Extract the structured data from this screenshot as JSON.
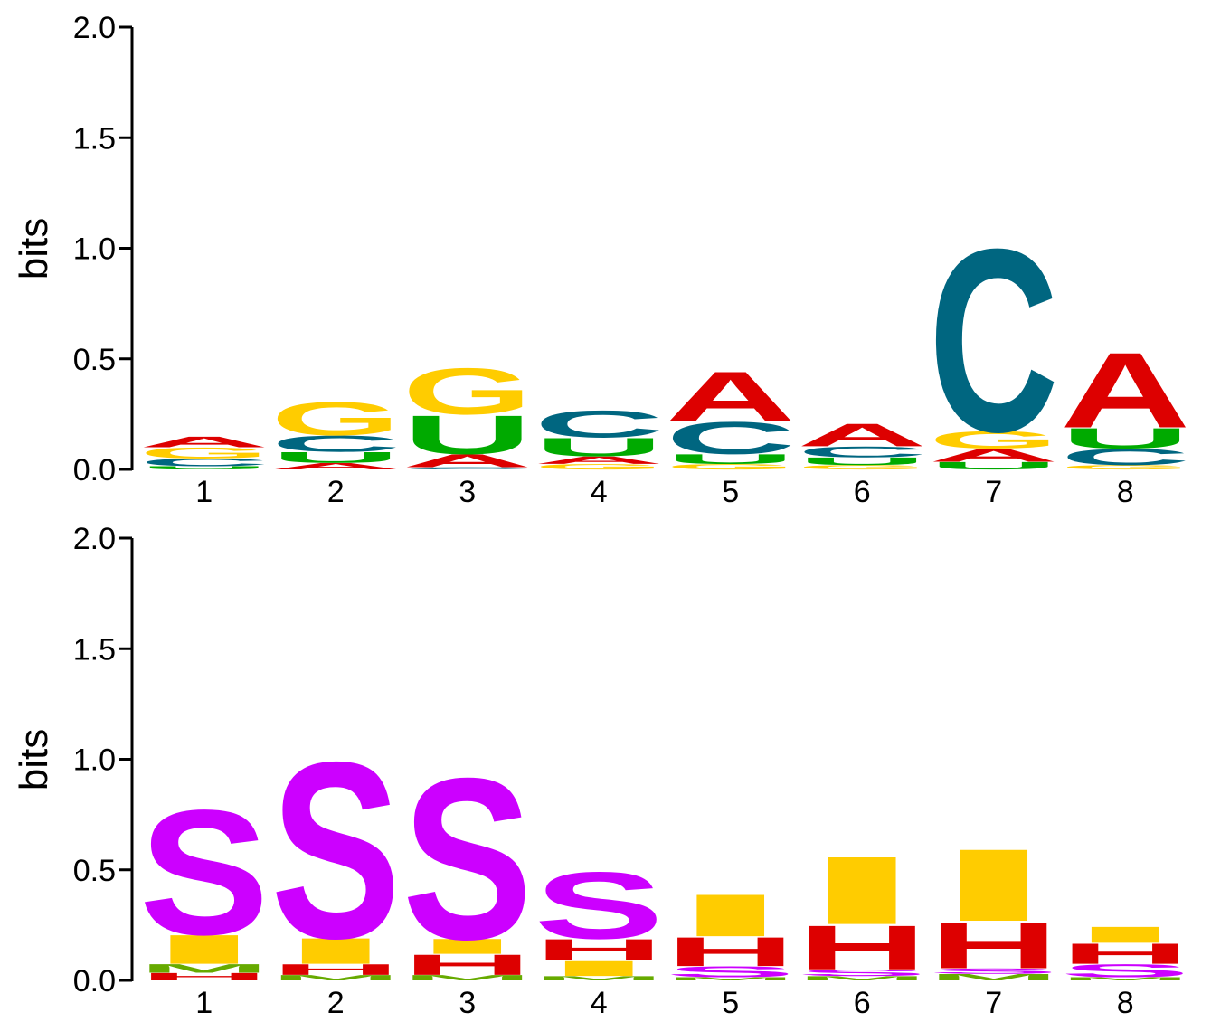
{
  "chart_data": [
    {
      "type": "sequence-logo",
      "alphabet": "RNA",
      "ylabel": "bits",
      "ylim": [
        0,
        2.0
      ],
      "yticks": [
        "0.0",
        "0.5",
        "1.0",
        "1.5",
        "2.0"
      ],
      "positions": [
        "1",
        "2",
        "3",
        "4",
        "5",
        "6",
        "7",
        "8"
      ],
      "colors": {
        "A": "#dd0000",
        "C": "#006680",
        "G": "#ffcc00",
        "U": "#00aa00"
      },
      "columns": [
        [
          {
            "letter": "U",
            "bits": 0.015
          },
          {
            "letter": "C",
            "bits": 0.035
          },
          {
            "letter": "G",
            "bits": 0.05
          },
          {
            "letter": "A",
            "bits": 0.05
          }
        ],
        [
          {
            "letter": "A",
            "bits": 0.03
          },
          {
            "letter": "U",
            "bits": 0.05
          },
          {
            "letter": "C",
            "bits": 0.075
          },
          {
            "letter": "G",
            "bits": 0.155
          }
        ],
        [
          {
            "letter": "C",
            "bits": 0.01
          },
          {
            "letter": "A",
            "bits": 0.06
          },
          {
            "letter": "U",
            "bits": 0.18
          },
          {
            "letter": "G",
            "bits": 0.215
          }
        ],
        [
          {
            "letter": "G",
            "bits": 0.025
          },
          {
            "letter": "A",
            "bits": 0.035
          },
          {
            "letter": "U",
            "bits": 0.085
          },
          {
            "letter": "C",
            "bits": 0.125
          }
        ],
        [
          {
            "letter": "G",
            "bits": 0.025
          },
          {
            "letter": "U",
            "bits": 0.045
          },
          {
            "letter": "C",
            "bits": 0.15
          },
          {
            "letter": "A",
            "bits": 0.23
          }
        ],
        [
          {
            "letter": "G",
            "bits": 0.02
          },
          {
            "letter": "U",
            "bits": 0.035
          },
          {
            "letter": "C",
            "bits": 0.05
          },
          {
            "letter": "A",
            "bits": 0.105
          }
        ],
        [
          {
            "letter": "U",
            "bits": 0.035
          },
          {
            "letter": "A",
            "bits": 0.06
          },
          {
            "letter": "G",
            "bits": 0.08
          },
          {
            "letter": "C",
            "bits": 0.85
          }
        ],
        [
          {
            "letter": "G",
            "bits": 0.02
          },
          {
            "letter": "C",
            "bits": 0.075
          },
          {
            "letter": "U",
            "bits": 0.095
          },
          {
            "letter": "A",
            "bits": 0.35
          }
        ]
      ]
    },
    {
      "type": "sequence-logo",
      "alphabet": "structure",
      "ylabel": "bits",
      "ylim": [
        0,
        2.0
      ],
      "yticks": [
        "0.0",
        "0.5",
        "1.0",
        "1.5",
        "2.0"
      ],
      "positions": [
        "1",
        "2",
        "3",
        "4",
        "5",
        "6",
        "7",
        "8"
      ],
      "colors": {
        "S": "#cc00ff",
        "I": "#ffcc00",
        "H": "#dd0000",
        "M": "#66aa00",
        "B": "#0000cc",
        "E": "#888888"
      },
      "columns": [
        [
          {
            "letter": "H",
            "bits": 0.035
          },
          {
            "letter": "M",
            "bits": 0.04
          },
          {
            "letter": "I",
            "bits": 0.135
          },
          {
            "letter": "S",
            "bits": 0.58
          }
        ],
        [
          {
            "letter": "M",
            "bits": 0.025
          },
          {
            "letter": "H",
            "bits": 0.05
          },
          {
            "letter": "I",
            "bits": 0.12
          },
          {
            "letter": "S",
            "bits": 0.82
          }
        ],
        [
          {
            "letter": "M",
            "bits": 0.025
          },
          {
            "letter": "H",
            "bits": 0.095
          },
          {
            "letter": "I",
            "bits": 0.07
          },
          {
            "letter": "S",
            "bits": 0.75
          }
        ],
        [
          {
            "letter": "M",
            "bits": 0.02
          },
          {
            "letter": "I",
            "bits": 0.07
          },
          {
            "letter": "H",
            "bits": 0.1
          },
          {
            "letter": "S",
            "bits": 0.31
          }
        ],
        [
          {
            "letter": "M",
            "bits": 0.015
          },
          {
            "letter": "S",
            "bits": 0.05
          },
          {
            "letter": "H",
            "bits": 0.135
          },
          {
            "letter": "I",
            "bits": 0.195
          }
        ],
        [
          {
            "letter": "M",
            "bits": 0.02
          },
          {
            "letter": "S",
            "bits": 0.03
          },
          {
            "letter": "H",
            "bits": 0.205
          },
          {
            "letter": "I",
            "bits": 0.315
          }
        ],
        [
          {
            "letter": "M",
            "bits": 0.03
          },
          {
            "letter": "S",
            "bits": 0.025
          },
          {
            "letter": "H",
            "bits": 0.215
          },
          {
            "letter": "I",
            "bits": 0.335
          }
        ],
        [
          {
            "letter": "M",
            "bits": 0.015
          },
          {
            "letter": "S",
            "bits": 0.06
          },
          {
            "letter": "H",
            "bits": 0.095
          },
          {
            "letter": "I",
            "bits": 0.075
          }
        ]
      ]
    }
  ]
}
